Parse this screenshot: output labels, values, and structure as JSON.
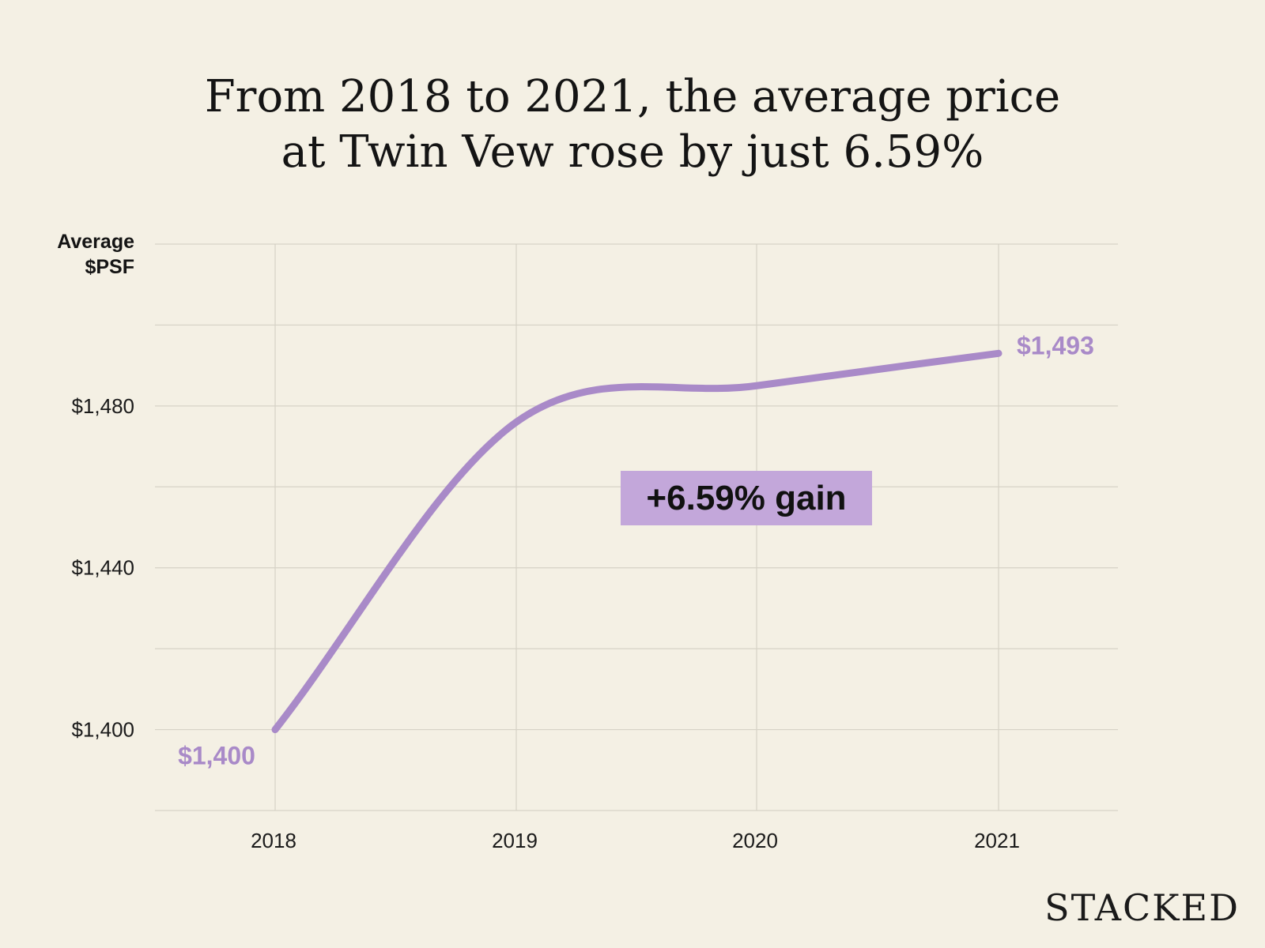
{
  "title": {
    "line1": "From 2018 to 2021, the average price",
    "line2": "at Twin Vew rose by just 6.59%"
  },
  "y_axis_label": {
    "line1": "Average",
    "line2": "$PSF"
  },
  "brand": "STACKED",
  "colors": {
    "background": "#f4f0e4",
    "line": "#a98ac8",
    "label": "#a98ac8",
    "badge": "#c3a7da",
    "grid": "#d6d2c6"
  },
  "chart_data": {
    "type": "line",
    "x": [
      "2018",
      "2019",
      "2020",
      "2021"
    ],
    "series": [
      {
        "values": [
          1400,
          1476,
          1485,
          1493
        ]
      }
    ],
    "ylim": [
      1380,
      1520
    ],
    "y_ticks": [
      1400,
      1440,
      1480
    ],
    "y_tick_labels": [
      "$1,400",
      "$1,440",
      "$1,480"
    ],
    "grid": true,
    "data_labels": {
      "start": "$1,400",
      "end": "$1,493"
    },
    "annotation": "+6.59% gain"
  }
}
